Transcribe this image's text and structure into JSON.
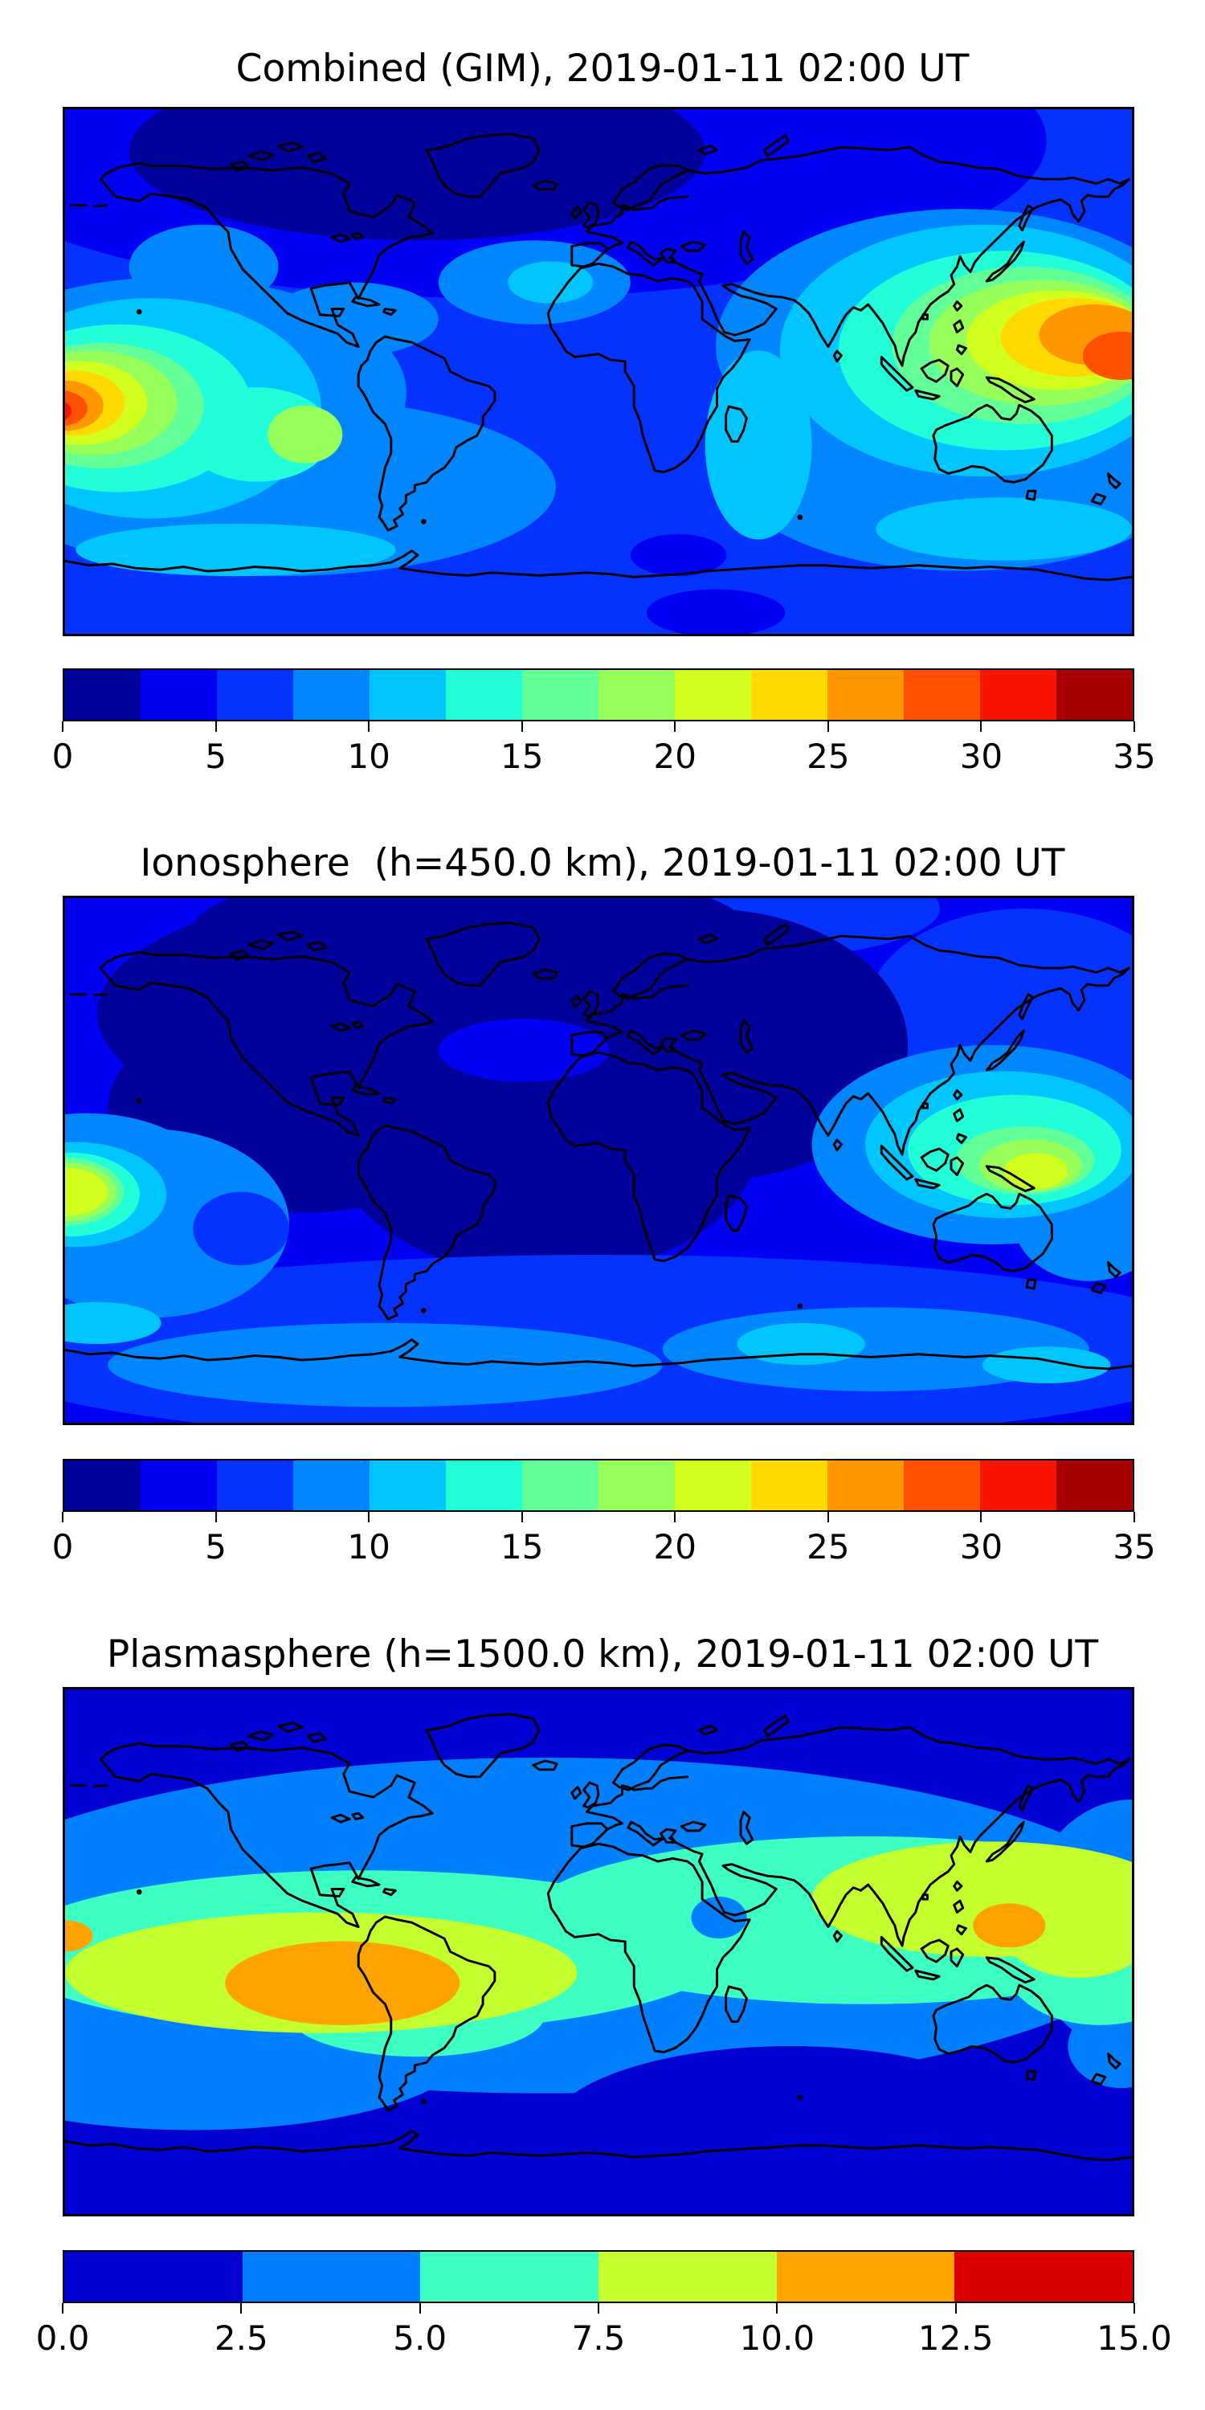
{
  "figure": {
    "background": "#ffffff",
    "coastline_color": "#000000",
    "projection": "equirectangular",
    "lon_range": [
      -180,
      180
    ],
    "lat_range": [
      -90,
      90
    ]
  },
  "panels": [
    {
      "title": "Combined (GIM), 2019-01-11 02:00 UT",
      "colorbar": {
        "min": 0,
        "max": 35,
        "tick_values": [
          0,
          5,
          10,
          15,
          20,
          25,
          30,
          35
        ],
        "tick_labels": [
          "0",
          "5",
          "10",
          "15",
          "20",
          "25",
          "30",
          "35"
        ],
        "colors": [
          "#00009B",
          "#0000F5",
          "#0433FF",
          "#0087FF",
          "#00C5FF",
          "#22FFD8",
          "#63FF97",
          "#97FF59",
          "#D1FF1E",
          "#FFD900",
          "#FF9800",
          "#FF5000",
          "#F81500",
          "#A80000"
        ]
      },
      "map": {
        "base": "#0433FF",
        "blobs": [
          [
            "#0000F5",
            40,
            6,
            52,
            30
          ],
          [
            "#00009B",
            33,
            8,
            27,
            17
          ],
          [
            "#0087FF",
            20,
            72,
            26,
            17
          ],
          [
            "#0087FF",
            84,
            68,
            22,
            20
          ],
          [
            "#0087FF",
            84,
            45,
            23,
            26
          ],
          [
            "#0087FF",
            10,
            54,
            22,
            22
          ],
          [
            "#0087FF",
            13,
            30,
            7,
            8
          ],
          [
            "#0087FF",
            27,
            40,
            8,
            7
          ],
          [
            "#0087FF",
            44,
            33,
            9,
            8
          ],
          [
            "#00C5FF",
            45.5,
            33,
            4,
            4
          ],
          [
            "#00C5FF",
            16,
            84,
            15,
            5
          ],
          [
            "#00C5FF",
            88,
            80,
            12,
            6
          ],
          [
            "#00C5FF",
            65,
            64,
            5,
            18
          ],
          [
            "#00C5FF",
            8,
            57,
            16,
            21
          ],
          [
            "#22FFD8",
            5,
            57,
            12.5,
            16
          ],
          [
            "#22FFD8",
            18,
            62,
            7,
            9
          ],
          [
            "#63FF97",
            3.5,
            56.5,
            9.5,
            12
          ],
          [
            "#97FF59",
            2.5,
            56,
            8,
            10
          ],
          [
            "#D1FF1E",
            1.5,
            56,
            6.2,
            8
          ],
          [
            "#FFD900",
            0.8,
            56,
            4.8,
            6.2
          ],
          [
            "#FF9800",
            0,
            56.5,
            3.6,
            4.8
          ],
          [
            "#FF5000",
            -0.5,
            57,
            2.6,
            3.4
          ],
          [
            "#F81500",
            -1,
            57.5,
            1.6,
            2.2
          ],
          [
            "#97FF59",
            22.5,
            62,
            3.5,
            5.5
          ],
          [
            "#00C5FF",
            86,
            46,
            19,
            24
          ],
          [
            "#22FFD8",
            88,
            46,
            15.5,
            19
          ],
          [
            "#63FF97",
            90,
            45,
            12.5,
            15
          ],
          [
            "#97FF59",
            91.5,
            44.5,
            10.5,
            12
          ],
          [
            "#D1FF1E",
            93,
            44,
            8.5,
            9.5
          ],
          [
            "#FFD900",
            94.5,
            43.5,
            6.8,
            7.5
          ],
          [
            "#FF9800",
            96.5,
            43,
            5.2,
            5.8
          ],
          [
            "#FF5000",
            99,
            47,
            3.6,
            4.6
          ],
          [
            "#0000F5",
            57.5,
            85,
            4.5,
            4
          ],
          [
            "#0000F5",
            61,
            96,
            6.5,
            4.5
          ]
        ]
      }
    },
    {
      "title": "Ionosphere  (h=450.0 km), 2019-01-11 02:00 UT",
      "colorbar": {
        "min": 0,
        "max": 35,
        "tick_values": [
          0,
          5,
          10,
          15,
          20,
          25,
          30,
          35
        ],
        "tick_labels": [
          "0",
          "5",
          "10",
          "15",
          "20",
          "25",
          "30",
          "35"
        ],
        "colors": [
          "#00009B",
          "#0000F5",
          "#0433FF",
          "#0087FF",
          "#00C5FF",
          "#22FFD8",
          "#63F F97",
          "#97FF59",
          "#D1FF1E",
          "#FFD900",
          "#FF9800",
          "#FF5000",
          "#F81500",
          "#A80000"
        ]
      },
      "map": {
        "base": "#0000F5",
        "blobs": [
          [
            "#0433FF",
            62,
            2,
            20,
            10
          ],
          [
            "#0433FF",
            90,
            22,
            15,
            20
          ],
          [
            "#00009B",
            33,
            22,
            30,
            24
          ],
          [
            "#00009B",
            45,
            46,
            20,
            26
          ],
          [
            "#00009B",
            60,
            28,
            19,
            26
          ],
          [
            "#00009B",
            22,
            40,
            18,
            20
          ],
          [
            "#00009B",
            38,
            6,
            26,
            12
          ],
          [
            "#0000F5",
            43,
            29,
            8,
            6
          ],
          [
            "#0433FF",
            50,
            86,
            60,
            18
          ],
          [
            "#0087FF",
            8,
            62,
            13,
            18
          ],
          [
            "#0087FF",
            2,
            55,
            12,
            14
          ],
          [
            "#0087FF",
            30,
            89,
            26,
            8
          ],
          [
            "#0087FF",
            76,
            86,
            20,
            8
          ],
          [
            "#0087FF",
            96,
            62,
            7,
            11
          ],
          [
            "#0433FF",
            16.5,
            63,
            4.5,
            7
          ],
          [
            "#00C5FF",
            3,
            81,
            6,
            4
          ],
          [
            "#00C5FF",
            69,
            85,
            6,
            4
          ],
          [
            "#00C5FF",
            92,
            89,
            6,
            3.5
          ],
          [
            "#00C5FF",
            1,
            56.5,
            8.5,
            10
          ],
          [
            "#22FFD8",
            0.5,
            56.5,
            6.5,
            8
          ],
          [
            "#63FF97",
            0,
            56,
            5.5,
            6.5
          ],
          [
            "#97FF59",
            0,
            56,
            4.8,
            5.6
          ],
          [
            "#D1FF1E",
            0,
            56,
            4,
            4.6
          ],
          [
            "#0087FF",
            87,
            47,
            17,
            19
          ],
          [
            "#00C5FF",
            88,
            47,
            13,
            14
          ],
          [
            "#22FFD8",
            89,
            48,
            10,
            10.5
          ],
          [
            "#63FF97",
            90,
            50,
            6.5,
            6.5
          ],
          [
            "#97FF59",
            90.5,
            51,
            4.8,
            5
          ],
          [
            "#D1FF1E",
            91,
            52,
            3,
            3.4
          ]
        ]
      }
    },
    {
      "title": "Plasmasphere (h=1500.0 km), 2019-01-11 02:00 UT",
      "colorbar": {
        "min": 0,
        "max": 15,
        "tick_values": [
          0,
          2.5,
          5,
          7.5,
          10,
          12.5,
          15
        ],
        "tick_labels": [
          "0.0",
          "2.5",
          "5.0",
          "7.5",
          "10.0",
          "12.5",
          "15.0"
        ],
        "colors": [
          "#0000D2",
          "#0080FF",
          "#3DFFC2",
          "#C3FF2E",
          "#FFA300",
          "#DC0000"
        ]
      },
      "map": {
        "base": "#0000D2",
        "blobs": [
          [
            "#0080FF",
            45,
            45,
            58,
            32
          ],
          [
            "#0080FF",
            12,
            68,
            26,
            16
          ],
          [
            "#0080FF",
            100,
            45,
            10,
            24
          ],
          [
            "#0000D2",
            68,
            85,
            23,
            17
          ],
          [
            "#0080FF",
            99,
            68,
            5,
            8
          ],
          [
            "#3DFFC2",
            28,
            50,
            34,
            15.5
          ],
          [
            "#3DFFC2",
            33,
            62,
            12,
            8
          ],
          [
            "#3DFFC2",
            75,
            44,
            32,
            16
          ],
          [
            "#3DFFC2",
            97,
            52,
            9,
            12
          ],
          [
            "#0080FF",
            61.3,
            43.5,
            2.6,
            4
          ],
          [
            "#C3FF2E",
            24,
            54,
            24,
            11.5
          ],
          [
            "#C3FF2E",
            87,
            40,
            17,
            11
          ],
          [
            "#C3FF2E",
            95,
            46,
            7,
            9
          ],
          [
            "#FFA300",
            26,
            56,
            11,
            8
          ],
          [
            "#FFA300",
            0,
            47,
            2.6,
            3
          ],
          [
            "#FFA300",
            88.5,
            45,
            3.4,
            4.2
          ]
        ]
      }
    }
  ],
  "chart_data": [
    {
      "type": "heatmap",
      "title": "Combined (GIM), 2019-01-11 02:00 UT",
      "projection": "equirectangular",
      "xlabel": "",
      "ylabel": "",
      "value_range": [
        0,
        35
      ],
      "contour_step": 2.5,
      "colormap": "jet (14 discrete levels)",
      "tick_labels": [
        "0",
        "5",
        "10",
        "15",
        "20",
        "25",
        "30",
        "35"
      ],
      "features": [
        {
          "name": "east-pacific equatorial anomaly peak",
          "lon": -177,
          "lat": -13,
          "value_est": 33
        },
        {
          "name": "west-pacific equatorial anomaly peak",
          "lon": 178,
          "lat": -5,
          "value_est": 29
        },
        {
          "name": "southeast-asia enhancement",
          "lon": 155,
          "lat": -2,
          "value_est": 25
        },
        {
          "name": "high-latitude northern minimum",
          "lon": -60,
          "lat": 75,
          "value_est": 1.5
        },
        {
          "name": "nighttime background (Atlantic/Africa)",
          "value_est": 6
        }
      ]
    },
    {
      "type": "heatmap",
      "title": "Ionosphere  (h=450.0 km), 2019-01-11 02:00 UT",
      "projection": "equirectangular",
      "value_range": [
        0,
        35
      ],
      "contour_step": 2.5,
      "colormap": "jet (14 discrete levels)",
      "tick_labels": [
        "0",
        "5",
        "10",
        "15",
        "20",
        "25",
        "30",
        "35"
      ],
      "features": [
        {
          "name": "east-pacific equatorial peak",
          "lon": -179,
          "lat": -12,
          "value_est": 21
        },
        {
          "name": "west-pacific equatorial peak",
          "lon": 148,
          "lat": -4,
          "value_est": 21
        },
        {
          "name": "broad nightside minimum (Americas-Africa)",
          "value_est": 2
        },
        {
          "name": "southern mid-latitude band",
          "value_est": 8
        }
      ]
    },
    {
      "type": "heatmap",
      "title": "Plasmasphere (h=1500.0 km), 2019-01-11 02:00 UT",
      "projection": "equirectangular",
      "value_range": [
        0,
        15
      ],
      "contour_step": 2.5,
      "colormap": "jet (6 discrete levels)",
      "tick_labels": [
        "0.0",
        "2.5",
        "5.0",
        "7.5",
        "10.0",
        "12.5",
        "15.0"
      ],
      "features": [
        {
          "name": "south-american plasmaspheric peak",
          "lon": -85,
          "lat": -15,
          "value_est": 11.5
        },
        {
          "name": "west-pacific peak",
          "lon": 140,
          "lat": -8,
          "value_est": 11
        },
        {
          "name": "left-edge peak",
          "lon": -180,
          "lat": -5,
          "value_est": 10.5
        },
        {
          "name": "arabian-sea local minimum",
          "lon": 40,
          "lat": 12,
          "value_est": 4
        },
        {
          "name": "polar caps",
          "value_est": 1.5
        },
        {
          "name": "equatorial belt background",
          "value_est": 7
        }
      ]
    }
  ]
}
